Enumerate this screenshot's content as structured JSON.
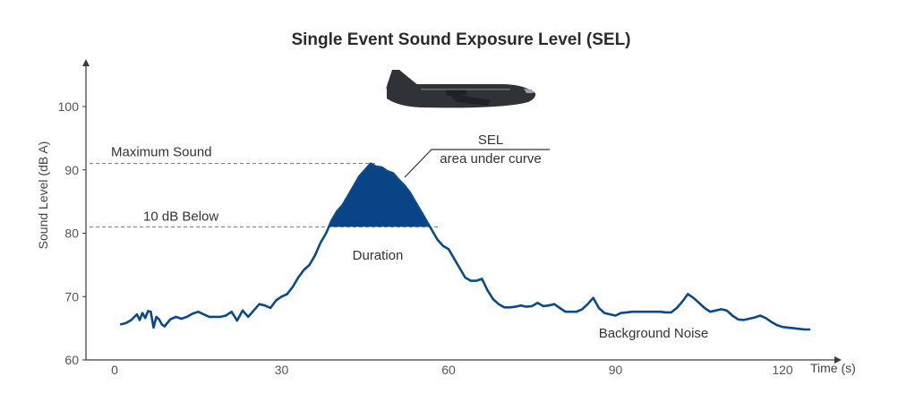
{
  "chart_data": {
    "type": "line",
    "title": "Single Event Sound Exposure Level (SEL)",
    "xlabel": "Time (s)",
    "ylabel": "Sound Level (dB A)",
    "xlim": [
      -2,
      130
    ],
    "ylim": [
      60,
      107
    ],
    "xticks": [
      0,
      30,
      60,
      90,
      120
    ],
    "yticks": [
      60,
      70,
      80,
      90,
      100
    ],
    "grid": false,
    "annotations": {
      "max_label": "Maximum Sound",
      "max_level": 91,
      "below_label": "10 dB Below",
      "below_level": 81,
      "sel_label": "SEL",
      "sel_sublabel": "area under curve",
      "duration_label": "Duration",
      "background_label": "Background Noise"
    },
    "series": [
      {
        "x": [
          1,
          2,
          3,
          4,
          4.5,
          5,
          5.5,
          6,
          6.5,
          7,
          7.5,
          8,
          8.5,
          9,
          10,
          11,
          12,
          13,
          14,
          15,
          16,
          17,
          18,
          19,
          20,
          21,
          22,
          23,
          24,
          25,
          26,
          27,
          28,
          29,
          30,
          31,
          32,
          33,
          34,
          35,
          36,
          37,
          38,
          39,
          40,
          41,
          42,
          43,
          44,
          45,
          46,
          47,
          48,
          49,
          50,
          51,
          52,
          53,
          54,
          55,
          56,
          57,
          58,
          59,
          60,
          61,
          62,
          63,
          64,
          65,
          66,
          67,
          68,
          69,
          70,
          71,
          72,
          73,
          74,
          75,
          76,
          77,
          78,
          79,
          80,
          81,
          82,
          83,
          84,
          85,
          86,
          87,
          88,
          89,
          90,
          91,
          92,
          93,
          94,
          95,
          96,
          97,
          98,
          99,
          100,
          101,
          102,
          103,
          104,
          105,
          106,
          107,
          108,
          109,
          110,
          111,
          112,
          113,
          114,
          115,
          116,
          117,
          118,
          119,
          120,
          121,
          122,
          123,
          124,
          125
        ],
        "y": [
          65.6,
          65.8,
          66.3,
          67.2,
          66.3,
          67.4,
          66.6,
          67.7,
          67.6,
          65.1,
          66.8,
          66.4,
          65.6,
          65.3,
          66.4,
          66.8,
          66.5,
          66.8,
          67.3,
          67.6,
          67.2,
          66.8,
          66.8,
          66.8,
          67.0,
          67.6,
          66.2,
          67.8,
          66.8,
          67.8,
          68.8,
          68.6,
          68.2,
          69.4,
          70.0,
          70.4,
          71.5,
          73.0,
          74.2,
          75.0,
          76.5,
          78.5,
          80.0,
          82.0,
          83.5,
          84.5,
          86.0,
          87.5,
          89.0,
          90.0,
          91.0,
          90.5,
          90.4,
          89.8,
          89.5,
          88.5,
          87.6,
          86.5,
          85.0,
          83.5,
          82.0,
          80.5,
          79.0,
          78.0,
          77.5,
          76.0,
          74.5,
          73.0,
          72.5,
          72.5,
          72.8,
          71.0,
          69.6,
          68.8,
          68.3,
          68.3,
          68.4,
          68.6,
          68.4,
          68.5,
          69.0,
          68.5,
          68.6,
          68.8,
          68.2,
          67.6,
          67.6,
          67.6,
          68.0,
          68.8,
          69.8,
          68.2,
          67.4,
          67.2,
          67.0,
          67.4,
          67.5,
          67.6,
          67.6,
          67.6,
          67.6,
          67.6,
          67.6,
          67.5,
          67.5,
          68.2,
          69.2,
          70.4,
          69.8,
          69.0,
          68.2,
          67.6,
          67.8,
          68.0,
          67.8,
          67.0,
          66.4,
          66.3,
          66.5,
          66.7,
          67.0,
          66.6,
          66.0,
          65.5,
          65.2,
          65.1,
          65.0,
          64.9,
          64.8,
          64.8
        ]
      }
    ]
  }
}
